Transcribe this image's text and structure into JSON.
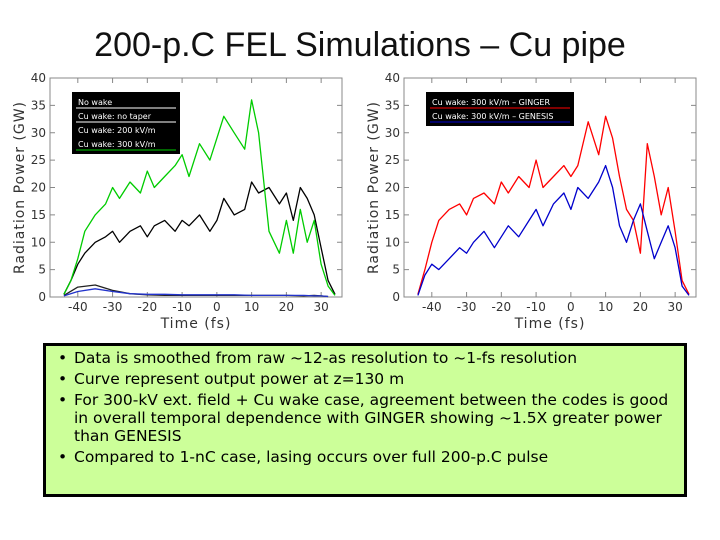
{
  "title": "200-p.C FEL Simulations – Cu pipe",
  "chart_data": [
    {
      "type": "line",
      "xlabel": "Time (fs)",
      "ylabel": "Radiation Power (GW)",
      "xlim": [
        -48,
        36
      ],
      "ylim": [
        0,
        40
      ],
      "xticks": [
        -40,
        -30,
        -20,
        -10,
        0,
        10,
        20,
        30
      ],
      "yticks": [
        0,
        5,
        10,
        15,
        20,
        25,
        30,
        35,
        40
      ],
      "legend_position": "top-left",
      "series": [
        {
          "name": "No wake",
          "color": "#ffffff",
          "x": [
            -44,
            -40,
            -35,
            -30,
            -25,
            -20,
            -15,
            -10,
            -5,
            0,
            5,
            10,
            15,
            18,
            20,
            25,
            28,
            30,
            32
          ],
          "y": [
            0.3,
            1.8,
            2.2,
            1.2,
            0.6,
            0.4,
            0.3,
            0.3,
            0.3,
            0.3,
            0.3,
            0.3,
            0.3,
            0.3,
            0.3,
            0.2,
            0.3,
            0.2,
            0.1
          ]
        },
        {
          "name": "Cu wake: no taper",
          "color": "#ffffff",
          "x": [
            -44,
            -40,
            -35,
            -30,
            -25,
            -20,
            -15,
            -10,
            -5,
            0,
            5,
            10,
            15,
            18,
            20,
            25,
            28,
            30,
            32
          ],
          "y": [
            0.2,
            1.0,
            1.5,
            1.0,
            0.6,
            0.5,
            0.5,
            0.4,
            0.4,
            0.4,
            0.4,
            0.3,
            0.3,
            0.3,
            0.3,
            0.3,
            0.2,
            0.2,
            0.1
          ]
        },
        {
          "name": "Cu wake: 200 kV/m",
          "color": "#000000",
          "x": [
            -44,
            -42,
            -40,
            -38,
            -35,
            -32,
            -30,
            -28,
            -25,
            -22,
            -20,
            -18,
            -15,
            -12,
            -10,
            -8,
            -5,
            -2,
            0,
            2,
            5,
            8,
            10,
            12,
            15,
            18,
            20,
            22,
            24,
            26,
            28,
            30,
            32,
            34
          ],
          "y": [
            0.5,
            3,
            6,
            8,
            10,
            11,
            12,
            10,
            12,
            13,
            11,
            13,
            14,
            12,
            14,
            13,
            15,
            12,
            14,
            18,
            15,
            16,
            21,
            19,
            20,
            17,
            19,
            14,
            20,
            18,
            15,
            9,
            3,
            0.5
          ]
        },
        {
          "name": "Cu wake: 300 kV/m",
          "color": "#00cc00",
          "x": [
            -44,
            -42,
            -40,
            -38,
            -35,
            -32,
            -30,
            -28,
            -25,
            -22,
            -20,
            -18,
            -15,
            -12,
            -10,
            -8,
            -5,
            -2,
            0,
            2,
            5,
            8,
            10,
            12,
            15,
            18,
            20,
            22,
            24,
            26,
            28,
            30,
            32,
            34
          ],
          "y": [
            0.5,
            3,
            7,
            12,
            15,
            17,
            20,
            18,
            21,
            19,
            23,
            20,
            22,
            24,
            26,
            22,
            28,
            25,
            29,
            33,
            30,
            27,
            36,
            30,
            12,
            8,
            14,
            8,
            16,
            10,
            14,
            6,
            2,
            0.3
          ]
        }
      ]
    },
    {
      "type": "line",
      "xlabel": "Time (fs)",
      "ylabel": "Radiation Power (GW)",
      "xlim": [
        -48,
        36
      ],
      "ylim": [
        0,
        40
      ],
      "xticks": [
        -40,
        -30,
        -20,
        -10,
        0,
        10,
        20,
        30
      ],
      "yticks": [
        0,
        5,
        10,
        15,
        20,
        25,
        30,
        35,
        40
      ],
      "legend_position": "top-left",
      "series": [
        {
          "name": "Cu wake: 300 kV/m – GINGER",
          "color": "#ff0000",
          "x": [
            -44,
            -42,
            -40,
            -38,
            -35,
            -32,
            -30,
            -28,
            -25,
            -22,
            -20,
            -18,
            -15,
            -12,
            -10,
            -8,
            -5,
            -2,
            0,
            2,
            5,
            8,
            10,
            12,
            14,
            16,
            18,
            20,
            22,
            24,
            26,
            28,
            30,
            32,
            34
          ],
          "y": [
            0.5,
            5,
            10,
            14,
            16,
            17,
            15,
            18,
            19,
            17,
            21,
            19,
            22,
            20,
            25,
            20,
            22,
            24,
            22,
            24,
            32,
            26,
            33,
            29,
            22,
            16,
            14,
            8,
            28,
            22,
            15,
            20,
            12,
            3,
            0.5
          ]
        },
        {
          "name": "Cu wake: 300 kV/m – GENESIS",
          "color": "#0000cc",
          "x": [
            -44,
            -42,
            -40,
            -38,
            -35,
            -32,
            -30,
            -28,
            -25,
            -22,
            -20,
            -18,
            -15,
            -12,
            -10,
            -8,
            -5,
            -2,
            0,
            2,
            5,
            8,
            10,
            12,
            14,
            16,
            18,
            20,
            22,
            24,
            26,
            28,
            30,
            32,
            34
          ],
          "y": [
            0.3,
            4,
            6,
            5,
            7,
            9,
            8,
            10,
            12,
            9,
            11,
            13,
            11,
            14,
            16,
            13,
            17,
            19,
            16,
            20,
            18,
            21,
            24,
            20,
            13,
            10,
            14,
            17,
            12,
            7,
            10,
            13,
            9,
            2,
            0.3
          ]
        }
      ]
    }
  ],
  "bullets": [
    "Data is smoothed from raw ~12-as resolution to ~1-fs resolution",
    "Curve represent output power at z=130 m",
    "For 300-kV ext. field + Cu wake case, agreement between the codes is good in overall temporal dependence with GINGER showing ~1.5X greater power than GENESIS",
    "Compared to 1-nC case, lasing occurs over full 200-p.C pulse"
  ]
}
